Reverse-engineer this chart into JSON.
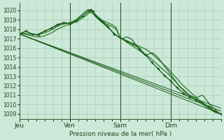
{
  "bg_color": "#cce8d8",
  "grid_color": "#a8ccb8",
  "line_color_dark": "#1a5c1a",
  "line_color_mid": "#2d7a2d",
  "ylabel_ticks": [
    1009,
    1010,
    1011,
    1012,
    1013,
    1014,
    1015,
    1016,
    1017,
    1018,
    1019,
    1020
  ],
  "ylim": [
    1008.5,
    1020.8
  ],
  "xlim": [
    0,
    96
  ],
  "xtick_positions": [
    0,
    24,
    48,
    72
  ],
  "xtick_labels": [
    "Jeu",
    "Ven",
    "Sam",
    "Dim"
  ],
  "xlabel": "Pression niveau de la mer( hPa )",
  "vlines": [
    24,
    48,
    72
  ],
  "series": {
    "straight1": {
      "x": [
        0,
        96
      ],
      "y": [
        1017.5,
        1009.0
      ]
    },
    "straight2": {
      "x": [
        0,
        96
      ],
      "y": [
        1017.5,
        1009.3
      ]
    },
    "straight3": {
      "x": [
        0,
        96
      ],
      "y": [
        1017.5,
        1009.6
      ]
    },
    "smooth_upper": {
      "x": [
        0,
        2,
        4,
        6,
        8,
        10,
        12,
        14,
        16,
        18,
        20,
        22,
        24,
        26,
        28,
        30,
        32,
        33,
        34,
        35,
        36,
        37,
        38,
        39,
        40,
        42,
        44,
        46,
        48,
        50,
        52,
        54,
        56,
        58,
        60,
        62,
        64,
        66,
        68,
        70,
        72,
        74,
        76,
        78,
        80,
        82,
        84,
        86,
        88,
        90,
        92,
        94,
        96
      ],
      "y": [
        1017.5,
        1017.6,
        1017.5,
        1017.5,
        1017.4,
        1017.5,
        1017.6,
        1017.8,
        1018.0,
        1018.3,
        1018.5,
        1018.6,
        1018.7,
        1018.9,
        1019.1,
        1019.4,
        1019.8,
        1020.0,
        1020.1,
        1019.9,
        1019.6,
        1019.4,
        1019.2,
        1019.0,
        1018.9,
        1018.7,
        1018.5,
        1018.2,
        1017.1,
        1016.8,
        1016.5,
        1016.2,
        1015.9,
        1015.6,
        1015.3,
        1015.0,
        1014.6,
        1014.2,
        1013.8,
        1013.4,
        1013.0,
        1012.5,
        1012.0,
        1011.5,
        1011.1,
        1010.8,
        1010.5,
        1010.2,
        1009.9,
        1009.6,
        1009.3,
        1009.1,
        1009.0
      ]
    },
    "smooth_lower": {
      "x": [
        0,
        2,
        4,
        6,
        8,
        10,
        12,
        14,
        16,
        18,
        20,
        22,
        24,
        26,
        28,
        30,
        32,
        33,
        34,
        35,
        36,
        37,
        38,
        39,
        40,
        42,
        44,
        46,
        48,
        50,
        52,
        54,
        56,
        58,
        60,
        62,
        64,
        66,
        68,
        70,
        72,
        74,
        76,
        78,
        80,
        82,
        84,
        86,
        88,
        90,
        92,
        94,
        96
      ],
      "y": [
        1017.5,
        1017.5,
        1017.4,
        1017.3,
        1017.2,
        1017.2,
        1017.3,
        1017.5,
        1017.7,
        1018.0,
        1018.2,
        1018.4,
        1018.5,
        1018.7,
        1018.9,
        1019.2,
        1019.5,
        1019.7,
        1019.8,
        1019.7,
        1019.5,
        1019.2,
        1019.0,
        1018.8,
        1018.7,
        1018.5,
        1018.3,
        1018.0,
        1017.1,
        1016.9,
        1016.7,
        1016.5,
        1016.3,
        1016.1,
        1015.9,
        1015.6,
        1015.2,
        1014.8,
        1014.4,
        1014.0,
        1013.5,
        1013.0,
        1012.5,
        1012.0,
        1011.6,
        1011.2,
        1010.8,
        1010.4,
        1010.0,
        1009.7,
        1009.4,
        1009.2,
        1009.0
      ]
    },
    "noisy_main": {
      "x": [
        0,
        1,
        2,
        3,
        4,
        5,
        6,
        7,
        8,
        9,
        10,
        11,
        12,
        13,
        14,
        15,
        16,
        17,
        18,
        19,
        20,
        21,
        22,
        23,
        24,
        25,
        26,
        27,
        28,
        29,
        30,
        31,
        32,
        33,
        34,
        35,
        36,
        37,
        38,
        39,
        40,
        41,
        42,
        43,
        44,
        45,
        46,
        47,
        48,
        49,
        50,
        51,
        52,
        53,
        54,
        55,
        56,
        57,
        58,
        59,
        60,
        61,
        62,
        63,
        64,
        65,
        66,
        67,
        68,
        69,
        70,
        71,
        72,
        73,
        74,
        75,
        76,
        77,
        78,
        79,
        80,
        81,
        82,
        83,
        84,
        85,
        86,
        87,
        88,
        89,
        90,
        91,
        92,
        93,
        94,
        95,
        96
      ],
      "y": [
        1017.5,
        1017.6,
        1017.7,
        1017.8,
        1017.7,
        1017.6,
        1017.5,
        1017.5,
        1017.4,
        1017.5,
        1017.6,
        1017.7,
        1017.8,
        1017.9,
        1018.0,
        1018.1,
        1018.2,
        1018.3,
        1018.4,
        1018.5,
        1018.6,
        1018.6,
        1018.7,
        1018.6,
        1018.6,
        1018.7,
        1018.8,
        1019.0,
        1019.2,
        1019.4,
        1019.6,
        1019.8,
        1020.0,
        1020.1,
        1019.9,
        1019.7,
        1019.4,
        1019.2,
        1019.0,
        1018.8,
        1018.6,
        1018.4,
        1018.2,
        1018.0,
        1017.8,
        1017.6,
        1017.4,
        1017.2,
        1017.1,
        1017.0,
        1017.1,
        1017.2,
        1017.1,
        1017.0,
        1016.8,
        1016.5,
        1016.2,
        1015.9,
        1015.6,
        1015.4,
        1015.2,
        1015.3,
        1015.4,
        1015.5,
        1015.4,
        1015.2,
        1015.0,
        1014.7,
        1014.4,
        1014.1,
        1013.8,
        1013.5,
        1013.2,
        1012.9,
        1012.6,
        1012.3,
        1012.0,
        1011.8,
        1011.6,
        1011.4,
        1011.2,
        1011.0,
        1010.9,
        1010.8,
        1010.7,
        1010.8,
        1010.9,
        1011.0,
        1010.8,
        1010.5,
        1010.2,
        1009.9,
        1009.7,
        1009.5,
        1009.3,
        1009.1,
        1009.0
      ]
    },
    "marker_line": {
      "x": [
        0,
        3,
        6,
        9,
        12,
        15,
        18,
        21,
        24,
        27,
        30,
        33,
        34,
        35,
        36,
        38,
        39,
        40,
        42,
        45,
        48,
        51,
        54,
        57,
        60,
        63,
        66,
        69,
        72,
        75,
        78,
        81,
        84,
        87,
        90,
        93,
        96
      ],
      "y": [
        1017.5,
        1017.8,
        1017.5,
        1017.4,
        1017.8,
        1018.1,
        1018.5,
        1018.7,
        1018.6,
        1018.9,
        1019.4,
        1019.9,
        1020.1,
        1019.9,
        1019.5,
        1019.1,
        1018.9,
        1018.7,
        1018.3,
        1017.5,
        1017.1,
        1016.7,
        1016.4,
        1016.0,
        1015.3,
        1014.5,
        1013.8,
        1013.1,
        1012.5,
        1011.8,
        1011.2,
        1010.8,
        1010.5,
        1010.2,
        1009.8,
        1009.3,
        1009.0
      ]
    }
  }
}
